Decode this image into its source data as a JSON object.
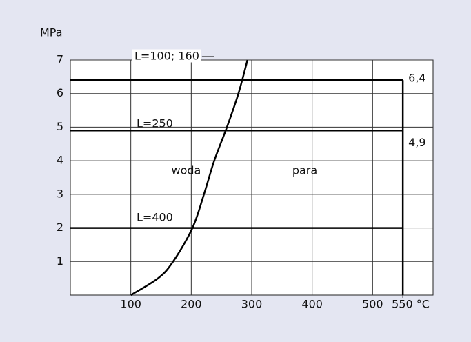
{
  "chart_data": {
    "type": "line",
    "ylabel": "MPa",
    "xlim": [
      0,
      600
    ],
    "ylim": [
      0,
      7
    ],
    "xticks": [
      100,
      200,
      300,
      400,
      500,
      {
        "value": 550,
        "label": "550 °C"
      }
    ],
    "yticks": [
      1,
      2,
      3,
      4,
      5,
      6,
      7
    ],
    "grid": true,
    "series": [
      {
        "name": "L=100; 160",
        "color": "#000000",
        "x": [
          0,
          550
        ],
        "values": [
          6.4,
          6.4
        ],
        "value_labels": [
          null,
          "6,4"
        ]
      },
      {
        "name": "L=250",
        "color": "#000000",
        "x": [
          0,
          550
        ],
        "values": [
          4.9,
          4.9
        ],
        "value_labels": [
          null,
          "4,9"
        ]
      },
      {
        "name": "L=400",
        "color": "#000000",
        "x": [
          0,
          550
        ],
        "values": [
          2,
          2
        ]
      }
    ],
    "boundary": {
      "x": [
        550,
        550
      ],
      "values": [
        0,
        6.4
      ]
    },
    "curve": {
      "x": [
        100,
        145,
        170,
        202,
        221,
        238,
        259,
        278,
        293
      ],
      "values": [
        0,
        0.5,
        1,
        2,
        3,
        4,
        5,
        6,
        7
      ]
    },
    "annotations": [
      {
        "text": "woda",
        "x": 150,
        "y": 3.7
      },
      {
        "text": "para",
        "x": 350,
        "y": 3.7
      }
    ]
  }
}
